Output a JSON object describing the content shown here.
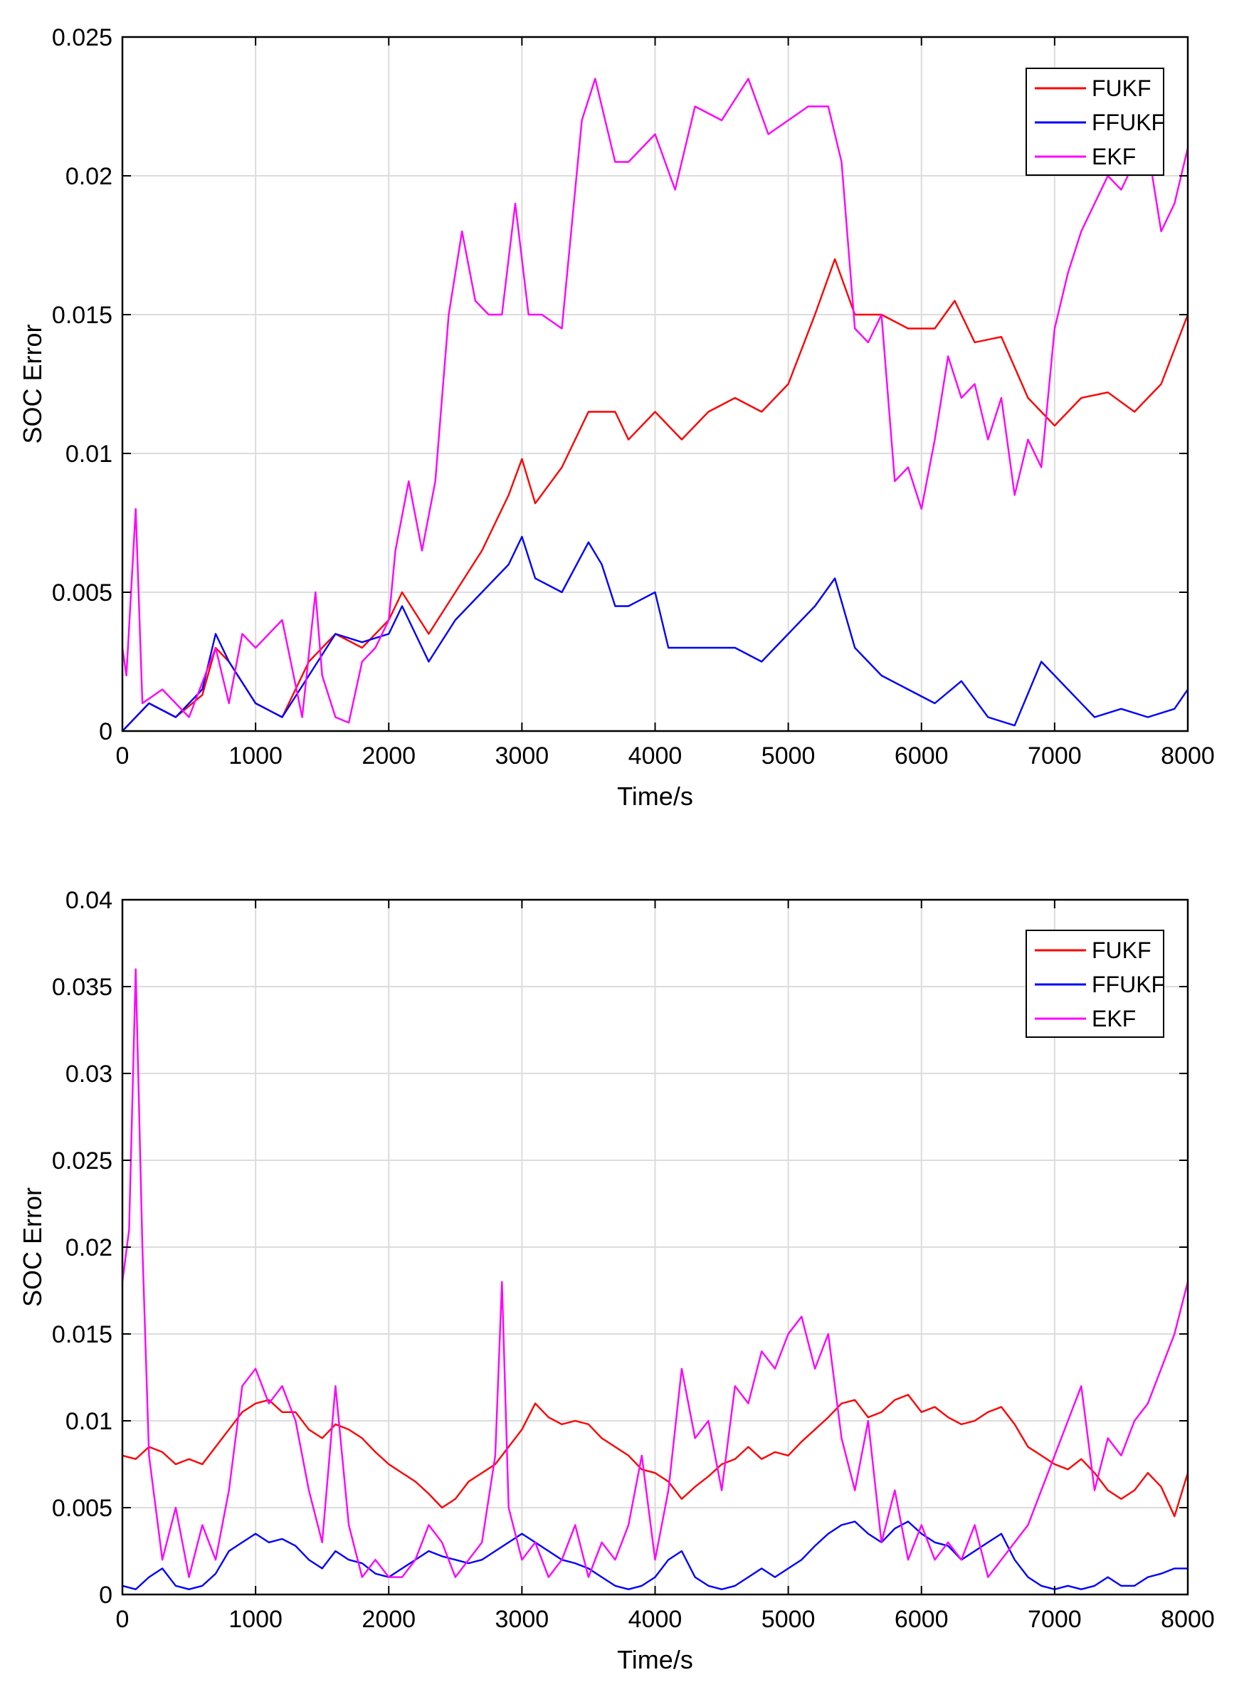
{
  "colors": {
    "FUKF": "#ff0000",
    "FFUKF": "#0000ff",
    "EKF": "#ff00ff"
  },
  "chart_data": [
    {
      "type": "line",
      "title": "",
      "xlabel": "Time/s",
      "ylabel": "SOC Error",
      "xlim": [
        0,
        8000
      ],
      "ylim": [
        0,
        0.025
      ],
      "xticks": [
        0,
        1000,
        2000,
        3000,
        4000,
        5000,
        6000,
        7000,
        8000
      ],
      "xtick_labels": [
        "0",
        "1000",
        "2000",
        "3000",
        "4000",
        "5000",
        "6000",
        "7000",
        "8000"
      ],
      "yticks": [
        0,
        0.005,
        0.01,
        0.015,
        0.02,
        0.025
      ],
      "ytick_labels": [
        "0",
        "0.005",
        "0.01",
        "0.015",
        "0.02",
        "0.025"
      ],
      "grid": true,
      "legend": "top-right",
      "series": [
        {
          "name": "FUKF",
          "x": [
            0,
            200,
            400,
            600,
            700,
            800,
            1000,
            1200,
            1400,
            1600,
            1800,
            2000,
            2100,
            2300,
            2500,
            2700,
            2900,
            3000,
            3100,
            3300,
            3500,
            3700,
            3800,
            4000,
            4200,
            4400,
            4600,
            4800,
            5000,
            5200,
            5350,
            5500,
            5700,
            5900,
            6100,
            6250,
            6400,
            6600,
            6800,
            7000,
            7200,
            7400,
            7600,
            7800,
            8000
          ],
          "values": [
            0,
            0.001,
            0.0005,
            0.0013,
            0.003,
            0.0025,
            0.001,
            0.0005,
            0.0025,
            0.0035,
            0.003,
            0.004,
            0.005,
            0.0035,
            0.005,
            0.0065,
            0.0085,
            0.0098,
            0.0082,
            0.0095,
            0.0115,
            0.0115,
            0.0105,
            0.0115,
            0.0105,
            0.0115,
            0.012,
            0.0115,
            0.0125,
            0.015,
            0.017,
            0.015,
            0.015,
            0.0145,
            0.0145,
            0.0155,
            0.014,
            0.0142,
            0.012,
            0.011,
            0.012,
            0.0122,
            0.0115,
            0.0125,
            0.015
          ]
        },
        {
          "name": "FFUKF",
          "x": [
            0,
            200,
            400,
            600,
            700,
            800,
            1000,
            1200,
            1400,
            1600,
            1800,
            2000,
            2100,
            2300,
            2500,
            2700,
            2900,
            3000,
            3100,
            3300,
            3500,
            3600,
            3700,
            3800,
            4000,
            4100,
            4200,
            4400,
            4600,
            4800,
            5000,
            5200,
            5350,
            5500,
            5700,
            5900,
            6100,
            6300,
            6500,
            6700,
            6900,
            7100,
            7300,
            7500,
            7700,
            7900,
            8000
          ],
          "values": [
            0,
            0.001,
            0.0005,
            0.0015,
            0.0035,
            0.0025,
            0.001,
            0.0005,
            0.002,
            0.0035,
            0.0032,
            0.0035,
            0.0045,
            0.0025,
            0.004,
            0.005,
            0.006,
            0.007,
            0.0055,
            0.005,
            0.0068,
            0.006,
            0.0045,
            0.0045,
            0.005,
            0.003,
            0.003,
            0.003,
            0.003,
            0.0025,
            0.0035,
            0.0045,
            0.0055,
            0.003,
            0.002,
            0.0015,
            0.001,
            0.0018,
            0.0005,
            0.0002,
            0.0025,
            0.0015,
            0.0005,
            0.0008,
            0.0005,
            0.0008,
            0.0015
          ]
        },
        {
          "name": "EKF",
          "x": [
            0,
            30,
            100,
            150,
            300,
            500,
            700,
            800,
            900,
            1000,
            1200,
            1350,
            1450,
            1500,
            1600,
            1700,
            1800,
            1900,
            2000,
            2050,
            2150,
            2250,
            2350,
            2450,
            2550,
            2650,
            2750,
            2850,
            2950,
            3050,
            3150,
            3300,
            3450,
            3550,
            3700,
            3800,
            4000,
            4150,
            4300,
            4500,
            4700,
            4850,
            5000,
            5150,
            5300,
            5400,
            5500,
            5600,
            5700,
            5800,
            5900,
            6000,
            6100,
            6200,
            6300,
            6400,
            6500,
            6600,
            6700,
            6800,
            6900,
            7000,
            7100,
            7200,
            7300,
            7400,
            7500,
            7600,
            7700,
            7800,
            7900,
            8000
          ],
          "values": [
            0.003,
            0.002,
            0.008,
            0.001,
            0.0015,
            0.0005,
            0.003,
            0.001,
            0.0035,
            0.003,
            0.004,
            0.0005,
            0.005,
            0.002,
            0.0005,
            0.0003,
            0.0025,
            0.003,
            0.004,
            0.0065,
            0.009,
            0.0065,
            0.009,
            0.015,
            0.018,
            0.0155,
            0.015,
            0.015,
            0.019,
            0.015,
            0.015,
            0.0145,
            0.022,
            0.0235,
            0.0205,
            0.0205,
            0.0215,
            0.0195,
            0.0225,
            0.022,
            0.0235,
            0.0215,
            0.022,
            0.0225,
            0.0225,
            0.0205,
            0.0145,
            0.014,
            0.015,
            0.009,
            0.0095,
            0.008,
            0.0105,
            0.0135,
            0.012,
            0.0125,
            0.0105,
            0.012,
            0.0085,
            0.0105,
            0.0095,
            0.0145,
            0.0165,
            0.018,
            0.019,
            0.02,
            0.0195,
            0.0205,
            0.021,
            0.018,
            0.019,
            0.021
          ]
        }
      ]
    },
    {
      "type": "line",
      "title": "",
      "xlabel": "Time/s",
      "ylabel": "SOC Error",
      "xlim": [
        0,
        8000
      ],
      "ylim": [
        0,
        0.04
      ],
      "xticks": [
        0,
        1000,
        2000,
        3000,
        4000,
        5000,
        6000,
        7000,
        8000
      ],
      "xtick_labels": [
        "0",
        "1000",
        "2000",
        "3000",
        "4000",
        "5000",
        "6000",
        "7000",
        "8000"
      ],
      "yticks": [
        0,
        0.005,
        0.01,
        0.015,
        0.02,
        0.025,
        0.03,
        0.035,
        0.04
      ],
      "ytick_labels": [
        "0",
        "0.005",
        "0.01",
        "0.015",
        "0.02",
        "0.025",
        "0.03",
        "0.035",
        "0.04"
      ],
      "grid": true,
      "legend": "top-right",
      "series": [
        {
          "name": "FUKF",
          "x": [
            0,
            100,
            200,
            300,
            400,
            500,
            600,
            700,
            800,
            900,
            1000,
            1100,
            1200,
            1300,
            1400,
            1500,
            1600,
            1700,
            1800,
            1900,
            2000,
            2100,
            2200,
            2300,
            2400,
            2500,
            2600,
            2700,
            2800,
            2900,
            3000,
            3100,
            3200,
            3300,
            3400,
            3500,
            3600,
            3700,
            3800,
            3900,
            4000,
            4100,
            4200,
            4300,
            4400,
            4500,
            4600,
            4700,
            4800,
            4900,
            5000,
            5100,
            5200,
            5300,
            5400,
            5500,
            5600,
            5700,
            5800,
            5900,
            6000,
            6100,
            6200,
            6300,
            6400,
            6500,
            6600,
            6700,
            6800,
            6900,
            7000,
            7100,
            7200,
            7300,
            7400,
            7500,
            7600,
            7700,
            7800,
            7900,
            8000
          ],
          "values": [
            0.008,
            0.0078,
            0.0085,
            0.0082,
            0.0075,
            0.0078,
            0.0075,
            0.0085,
            0.0095,
            0.0105,
            0.011,
            0.0112,
            0.0105,
            0.0105,
            0.0095,
            0.009,
            0.0098,
            0.0095,
            0.009,
            0.0082,
            0.0075,
            0.007,
            0.0065,
            0.0058,
            0.005,
            0.0055,
            0.0065,
            0.007,
            0.0075,
            0.0085,
            0.0095,
            0.011,
            0.0102,
            0.0098,
            0.01,
            0.0098,
            0.009,
            0.0085,
            0.008,
            0.0072,
            0.007,
            0.0065,
            0.0055,
            0.0062,
            0.0068,
            0.0075,
            0.0078,
            0.0085,
            0.0078,
            0.0082,
            0.008,
            0.0088,
            0.0095,
            0.0102,
            0.011,
            0.0112,
            0.0102,
            0.0105,
            0.0112,
            0.0115,
            0.0105,
            0.0108,
            0.0102,
            0.0098,
            0.01,
            0.0105,
            0.0108,
            0.0098,
            0.0085,
            0.008,
            0.0075,
            0.0072,
            0.0078,
            0.007,
            0.006,
            0.0055,
            0.006,
            0.007,
            0.0062,
            0.0045,
            0.007
          ]
        },
        {
          "name": "FFUKF",
          "x": [
            0,
            100,
            200,
            300,
            400,
            500,
            600,
            700,
            800,
            900,
            1000,
            1100,
            1200,
            1300,
            1400,
            1500,
            1600,
            1700,
            1800,
            1900,
            2000,
            2100,
            2200,
            2300,
            2400,
            2500,
            2600,
            2700,
            2800,
            2900,
            3000,
            3100,
            3200,
            3300,
            3400,
            3500,
            3600,
            3700,
            3800,
            3900,
            4000,
            4100,
            4200,
            4300,
            4400,
            4500,
            4600,
            4700,
            4800,
            4900,
            5000,
            5100,
            5200,
            5300,
            5400,
            5500,
            5600,
            5700,
            5800,
            5900,
            6000,
            6100,
            6200,
            6300,
            6400,
            6500,
            6600,
            6700,
            6800,
            6900,
            7000,
            7100,
            7200,
            7300,
            7400,
            7500,
            7600,
            7700,
            7800,
            7900,
            8000
          ],
          "values": [
            0.0005,
            0.0003,
            0.001,
            0.0015,
            0.0005,
            0.0003,
            0.0005,
            0.0012,
            0.0025,
            0.003,
            0.0035,
            0.003,
            0.0032,
            0.0028,
            0.002,
            0.0015,
            0.0025,
            0.002,
            0.0018,
            0.0012,
            0.001,
            0.0015,
            0.002,
            0.0025,
            0.0022,
            0.002,
            0.0018,
            0.002,
            0.0025,
            0.003,
            0.0035,
            0.003,
            0.0025,
            0.002,
            0.0018,
            0.0015,
            0.001,
            0.0005,
            0.0003,
            0.0005,
            0.001,
            0.002,
            0.0025,
            0.001,
            0.0005,
            0.0003,
            0.0005,
            0.001,
            0.0015,
            0.001,
            0.0015,
            0.002,
            0.0028,
            0.0035,
            0.004,
            0.0042,
            0.0035,
            0.003,
            0.0038,
            0.0042,
            0.0035,
            0.003,
            0.0028,
            0.002,
            0.0025,
            0.003,
            0.0035,
            0.002,
            0.001,
            0.0005,
            0.0003,
            0.0005,
            0.0003,
            0.0005,
            0.001,
            0.0005,
            0.0005,
            0.001,
            0.0012,
            0.0015,
            0.0015
          ]
        },
        {
          "name": "EKF",
          "x": [
            0,
            50,
            100,
            150,
            200,
            300,
            400,
            500,
            600,
            700,
            800,
            900,
            1000,
            1100,
            1200,
            1300,
            1400,
            1500,
            1600,
            1700,
            1800,
            1900,
            2000,
            2100,
            2200,
            2300,
            2400,
            2500,
            2600,
            2700,
            2800,
            2850,
            2900,
            3000,
            3100,
            3200,
            3300,
            3400,
            3500,
            3600,
            3700,
            3800,
            3900,
            4000,
            4100,
            4200,
            4300,
            4400,
            4500,
            4600,
            4700,
            4800,
            4900,
            5000,
            5100,
            5200,
            5300,
            5400,
            5500,
            5600,
            5700,
            5800,
            5900,
            6000,
            6100,
            6200,
            6300,
            6400,
            6500,
            6600,
            6700,
            6800,
            6900,
            7000,
            7100,
            7200,
            7300,
            7400,
            7500,
            7600,
            7700,
            7800,
            7900,
            8000
          ],
          "values": [
            0.018,
            0.021,
            0.036,
            0.02,
            0.008,
            0.002,
            0.005,
            0.001,
            0.004,
            0.002,
            0.006,
            0.012,
            0.013,
            0.011,
            0.012,
            0.01,
            0.006,
            0.003,
            0.012,
            0.004,
            0.001,
            0.002,
            0.001,
            0.001,
            0.002,
            0.004,
            0.003,
            0.001,
            0.002,
            0.003,
            0.008,
            0.018,
            0.005,
            0.002,
            0.003,
            0.001,
            0.002,
            0.004,
            0.001,
            0.003,
            0.002,
            0.004,
            0.008,
            0.002,
            0.006,
            0.013,
            0.009,
            0.01,
            0.006,
            0.012,
            0.011,
            0.014,
            0.013,
            0.015,
            0.016,
            0.013,
            0.015,
            0.009,
            0.006,
            0.01,
            0.003,
            0.006,
            0.002,
            0.004,
            0.002,
            0.003,
            0.002,
            0.004,
            0.001,
            0.002,
            0.003,
            0.004,
            0.006,
            0.008,
            0.01,
            0.012,
            0.006,
            0.009,
            0.008,
            0.01,
            0.011,
            0.013,
            0.015,
            0.018
          ]
        }
      ]
    }
  ]
}
